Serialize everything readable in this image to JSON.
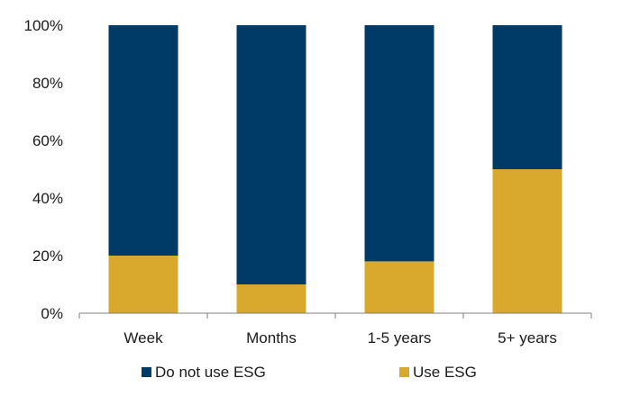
{
  "chart_data": {
    "type": "bar",
    "stacked": true,
    "categories": [
      "Week",
      "Months",
      "1-5 years",
      "5+ years"
    ],
    "series": [
      {
        "name": "Use ESG",
        "values": [
          20,
          10,
          18,
          50
        ],
        "color": "#D9A92E"
      },
      {
        "name": "Do not use ESG",
        "values": [
          80,
          90,
          82,
          50
        ],
        "color": "#003A66"
      }
    ],
    "y_ticks": [
      "0%",
      "20%",
      "40%",
      "60%",
      "80%",
      "100%"
    ],
    "ylim": [
      0,
      100
    ],
    "grid": false,
    "legend": {
      "placement": "bottom",
      "order": [
        "Do not use ESG",
        "Use ESG"
      ]
    },
    "axis_color": "#7f7f7f"
  }
}
